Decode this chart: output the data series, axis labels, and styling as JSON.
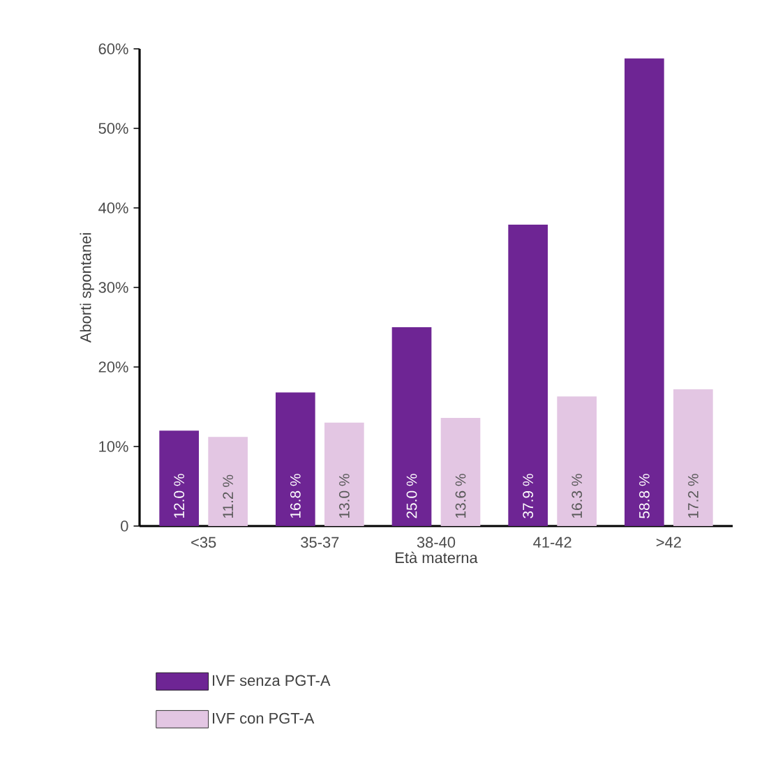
{
  "chart_data": {
    "type": "bar",
    "xlabel": "Età materna",
    "ylabel": "Aborti spontanei",
    "categories": [
      "<35",
      "35-37",
      "38-40",
      "41-42",
      ">42"
    ],
    "series": [
      {
        "name": "IVF senza PGT-A",
        "color": "#6e2594",
        "values": [
          12.0,
          16.8,
          25.0,
          37.9,
          58.8
        ],
        "value_labels": [
          "12.0 %",
          "16.8 %",
          "25.0 %",
          "37.9 %",
          "58.8 %"
        ]
      },
      {
        "name": "IVF con PGT-A",
        "color": "#e3c6e3",
        "values": [
          11.2,
          13.0,
          13.6,
          16.3,
          17.2
        ],
        "value_labels": [
          "11.2 %",
          "13.0 %",
          "13.6 %",
          "16.3 %",
          "17.2 %"
        ]
      }
    ],
    "ylim": [
      0,
      60
    ],
    "yticks": [
      0,
      {
        "value": 10,
        "label": "10%"
      },
      {
        "value": 20,
        "label": "20%"
      },
      {
        "value": 30,
        "label": "30%"
      },
      {
        "value": 40,
        "label": "40%"
      },
      {
        "value": 50,
        "label": "50%"
      },
      {
        "value": 60,
        "label": "60%"
      }
    ],
    "legend": "bottom left"
  }
}
